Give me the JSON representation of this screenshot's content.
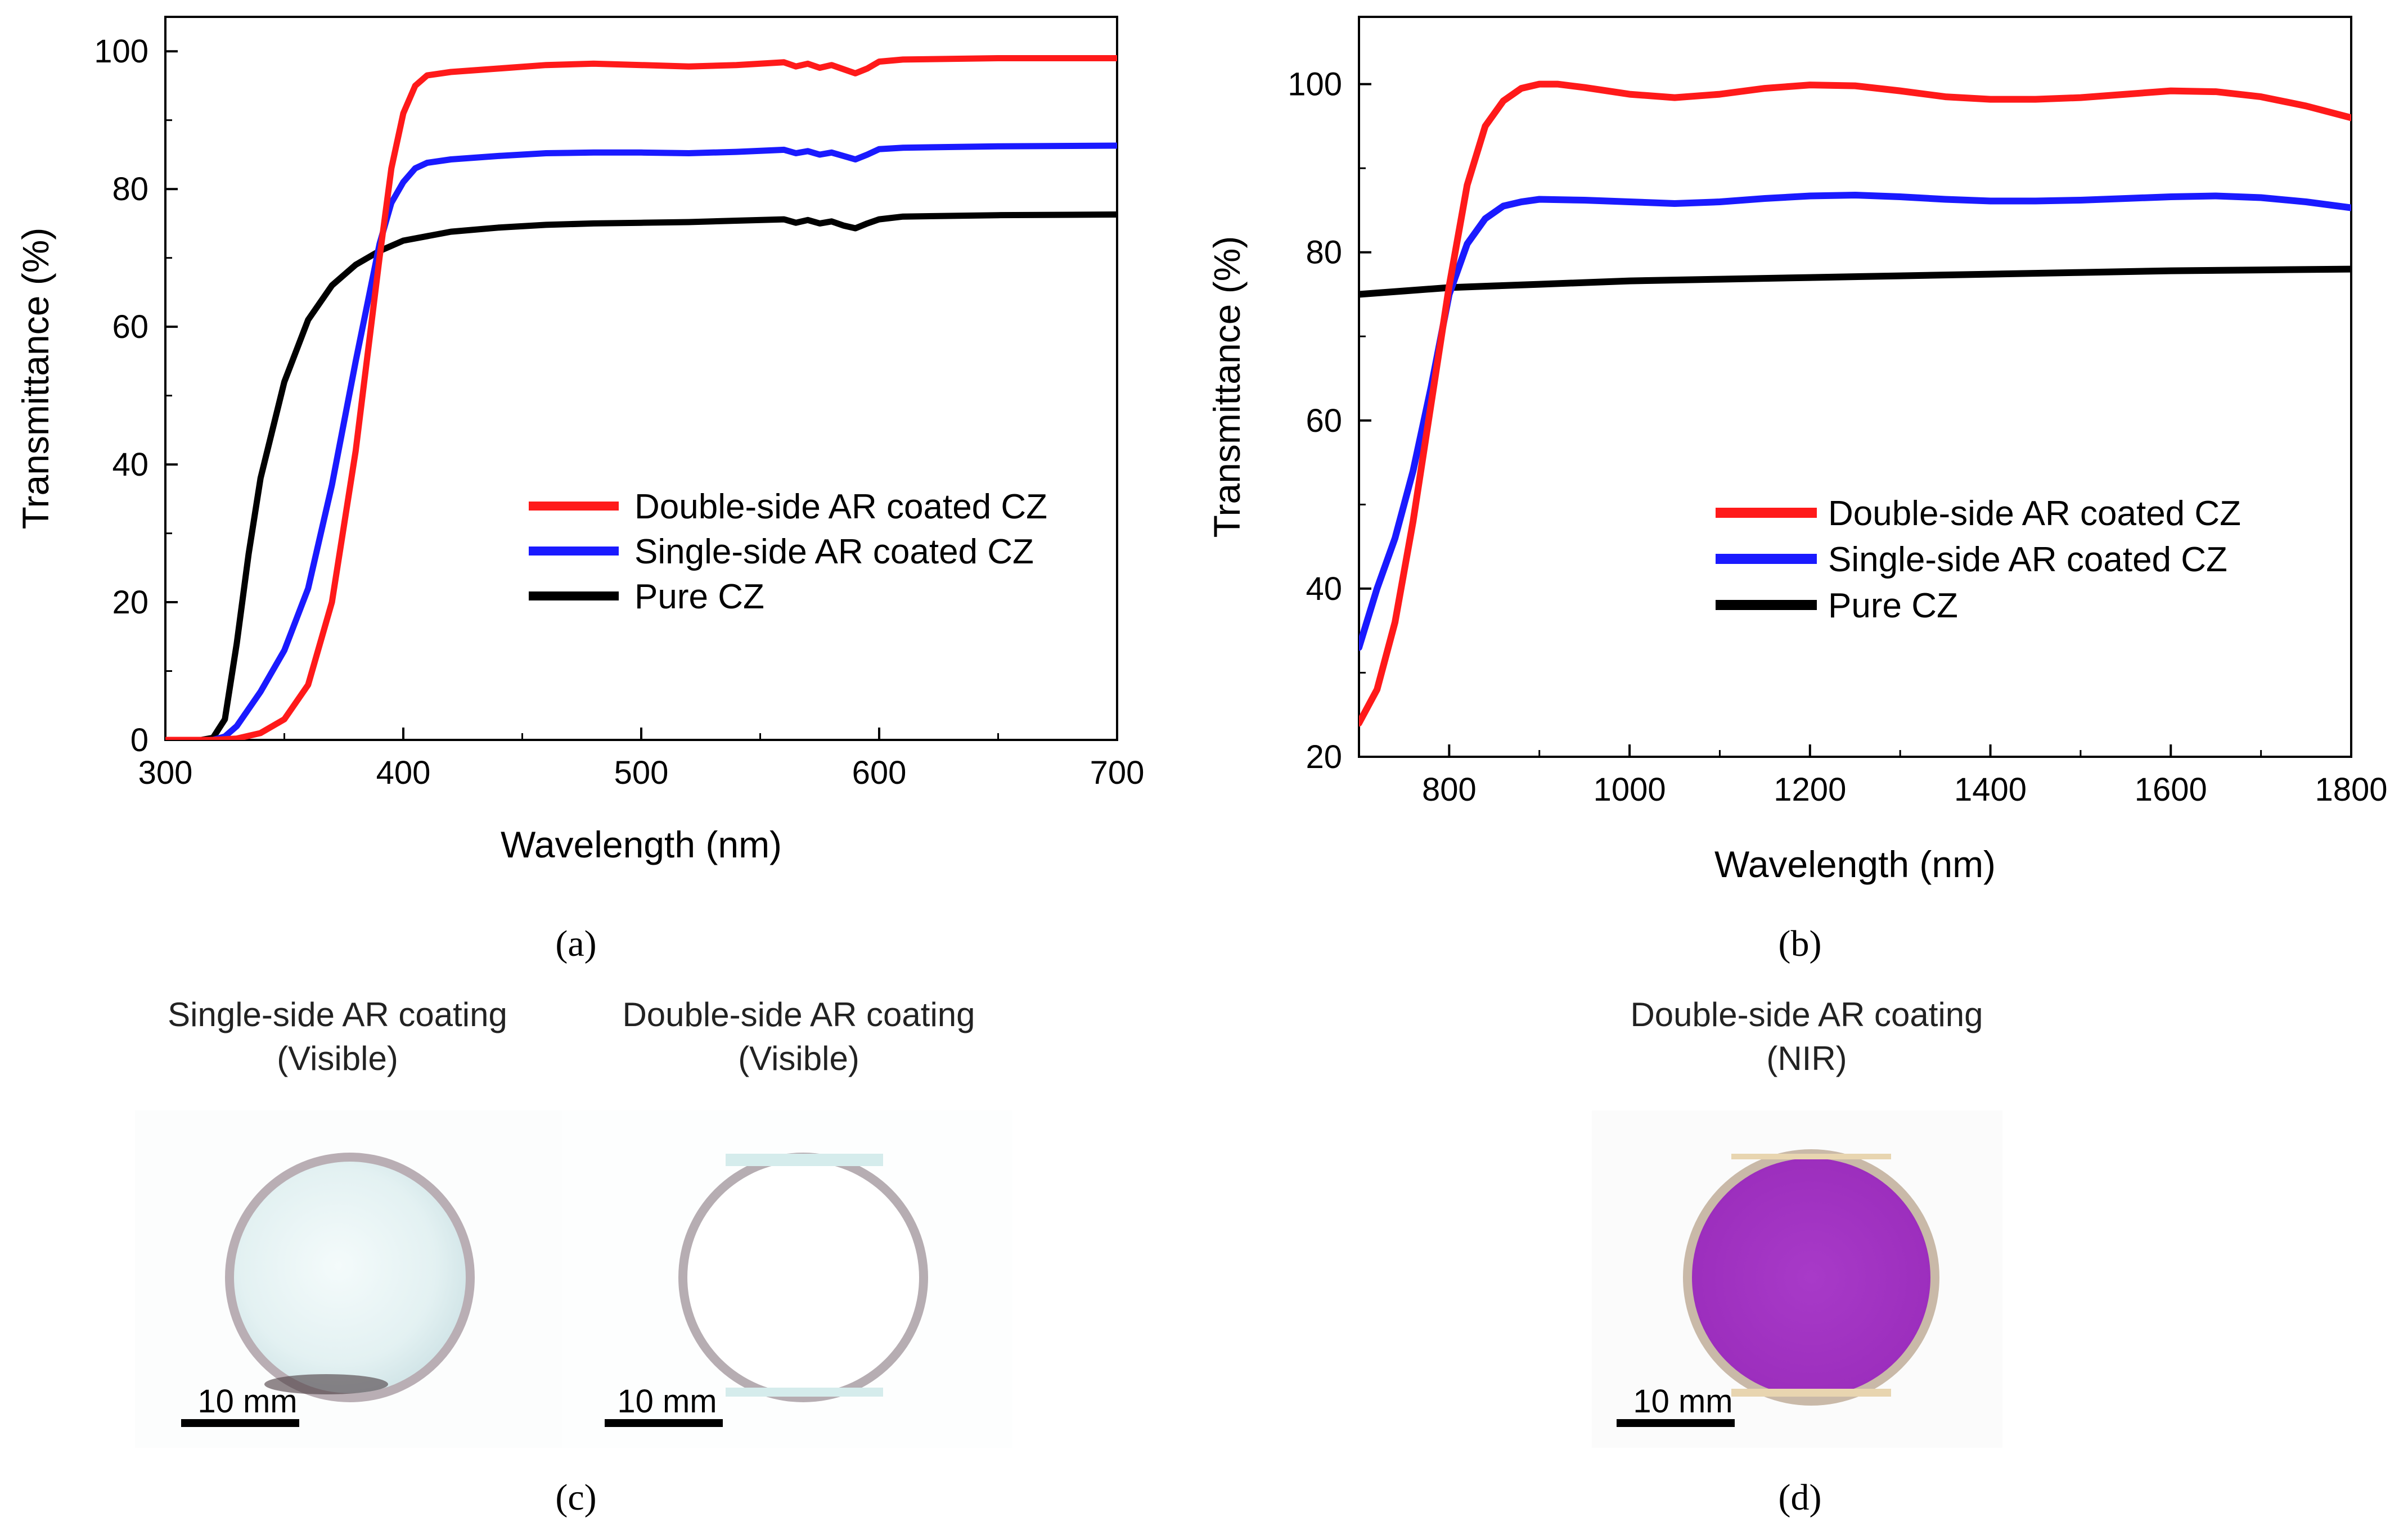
{
  "chart_data": [
    {
      "type": "line",
      "panel_label": "(a)",
      "xlabel": "Wavelength (nm)",
      "ylabel": "Transmittance (%)",
      "xlim": [
        300,
        700
      ],
      "ylim": [
        0,
        105
      ],
      "xticks": [
        300,
        400,
        500,
        600,
        700
      ],
      "yticks": [
        0,
        20,
        40,
        60,
        80,
        100
      ],
      "legend_position": "center-right",
      "series": [
        {
          "name": "Double-side AR coated CZ",
          "color": "#ff1a1a",
          "x": [
            300,
            320,
            330,
            340,
            350,
            360,
            370,
            380,
            390,
            395,
            400,
            405,
            410,
            420,
            440,
            460,
            480,
            500,
            520,
            540,
            560,
            565,
            570,
            575,
            580,
            585,
            590,
            595,
            600,
            610,
            650,
            700
          ],
          "y": [
            0,
            0,
            0.2,
            1,
            3,
            8,
            20,
            42,
            70,
            83,
            91,
            95,
            96.5,
            97,
            97.5,
            98,
            98.2,
            98,
            97.8,
            98,
            98.4,
            97.8,
            98.2,
            97.6,
            98,
            97.4,
            96.8,
            97.5,
            98.5,
            98.8,
            99,
            99
          ]
        },
        {
          "name": "Single-side AR coated CZ",
          "color": "#1a1aff",
          "x": [
            300,
            320,
            325,
            330,
            340,
            350,
            360,
            370,
            380,
            390,
            395,
            400,
            405,
            410,
            420,
            440,
            460,
            480,
            500,
            520,
            540,
            560,
            565,
            570,
            575,
            580,
            585,
            590,
            595,
            600,
            610,
            650,
            700
          ],
          "y": [
            0,
            0,
            0.5,
            2,
            7,
            13,
            22,
            37,
            55,
            72,
            78,
            81,
            83,
            83.8,
            84.3,
            84.8,
            85.2,
            85.3,
            85.3,
            85.2,
            85.4,
            85.7,
            85.2,
            85.5,
            85,
            85.3,
            84.8,
            84.3,
            85,
            85.8,
            86,
            86.2,
            86.3
          ]
        },
        {
          "name": "Pure CZ",
          "color": "#000000",
          "x": [
            300,
            315,
            320,
            325,
            330,
            335,
            340,
            350,
            360,
            370,
            380,
            390,
            400,
            420,
            440,
            460,
            480,
            500,
            520,
            540,
            560,
            565,
            570,
            575,
            580,
            585,
            590,
            595,
            600,
            610,
            650,
            700
          ],
          "y": [
            0,
            0,
            0.3,
            3,
            14,
            27,
            38,
            52,
            61,
            66,
            69,
            71,
            72.5,
            73.8,
            74.4,
            74.8,
            75,
            75.1,
            75.2,
            75.4,
            75.6,
            75.1,
            75.5,
            75,
            75.3,
            74.7,
            74.3,
            75,
            75.6,
            76,
            76.2,
            76.3
          ]
        }
      ]
    },
    {
      "type": "line",
      "panel_label": "(b)",
      "xlabel": "Wavelength (nm)",
      "ylabel": "Transmittance (%)",
      "xlim": [
        700,
        1800
      ],
      "ylim": [
        20,
        108
      ],
      "xticks": [
        800,
        1000,
        1200,
        1400,
        1600,
        1800
      ],
      "yticks": [
        20,
        40,
        60,
        80,
        100
      ],
      "legend_position": "lower-right",
      "series": [
        {
          "name": "Double-side AR coated CZ",
          "color": "#ff1a1a",
          "x": [
            700,
            720,
            740,
            760,
            780,
            800,
            820,
            840,
            860,
            880,
            900,
            920,
            950,
            1000,
            1050,
            1100,
            1150,
            1200,
            1250,
            1300,
            1350,
            1400,
            1450,
            1500,
            1550,
            1600,
            1650,
            1700,
            1750,
            1800
          ],
          "y": [
            24,
            28,
            36,
            48,
            62,
            76,
            88,
            95,
            98,
            99.5,
            100,
            100,
            99.6,
            98.8,
            98.4,
            98.8,
            99.5,
            99.9,
            99.8,
            99.2,
            98.5,
            98.2,
            98.2,
            98.4,
            98.8,
            99.2,
            99.1,
            98.5,
            97.4,
            96
          ]
        },
        {
          "name": "Single-side AR coated CZ",
          "color": "#1a1aff",
          "x": [
            700,
            720,
            740,
            760,
            780,
            800,
            820,
            840,
            860,
            880,
            900,
            950,
            1000,
            1050,
            1100,
            1150,
            1200,
            1250,
            1300,
            1350,
            1400,
            1450,
            1500,
            1550,
            1600,
            1650,
            1700,
            1750,
            1800
          ],
          "y": [
            33,
            40,
            46,
            54,
            64,
            75,
            81,
            84,
            85.5,
            86,
            86.3,
            86.2,
            86,
            85.8,
            86,
            86.4,
            86.7,
            86.8,
            86.6,
            86.3,
            86.1,
            86.1,
            86.2,
            86.4,
            86.6,
            86.7,
            86.5,
            86,
            85.3
          ]
        },
        {
          "name": "Pure CZ",
          "color": "#000000",
          "x": [
            700,
            750,
            800,
            850,
            900,
            950,
            1000,
            1100,
            1200,
            1300,
            1400,
            1500,
            1600,
            1700,
            1800
          ],
          "y": [
            75,
            75.4,
            75.8,
            76,
            76.2,
            76.4,
            76.6,
            76.8,
            77,
            77.2,
            77.4,
            77.6,
            77.8,
            77.9,
            78
          ]
        }
      ]
    }
  ],
  "photos": {
    "panel_c_label": "(c)",
    "panel_d_label": "(d)",
    "sample1": {
      "caption_line1": "Single-side AR coating",
      "caption_line2": "(Visible)",
      "scale_label": "10 mm"
    },
    "sample2": {
      "caption_line1": "Double-side AR coating",
      "caption_line2": "(Visible)",
      "scale_label": "10 mm"
    },
    "sample3": {
      "caption_line1": "Double-side AR coating",
      "caption_line2": "(NIR)",
      "scale_label": "10 mm"
    }
  }
}
